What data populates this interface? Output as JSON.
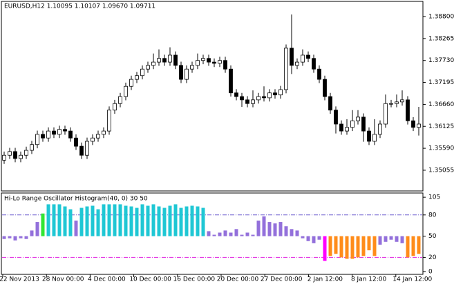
{
  "chart_data": [
    {
      "type": "candlestick",
      "title": "EURUSD,H12  1.10095 1.10107 1.09670 1.09711",
      "ylim": [
        1.3455,
        1.3917
      ],
      "yticks": [
        {
          "value": 1.388,
          "label": "1.38800"
        },
        {
          "value": 1.38265,
          "label": "1.38265"
        },
        {
          "value": 1.3773,
          "label": "1.37730"
        },
        {
          "value": 1.37195,
          "label": "1.37195"
        },
        {
          "value": 1.3666,
          "label": "1.36660"
        },
        {
          "value": 1.36125,
          "label": "1.36125"
        },
        {
          "value": 1.3559,
          "label": "1.35590"
        },
        {
          "value": 1.35055,
          "label": "1.35055"
        }
      ],
      "open": [
        1.353,
        1.3542,
        1.3551,
        1.3534,
        1.3542,
        1.3554,
        1.3568,
        1.3593,
        1.3584,
        1.3601,
        1.3593,
        1.3605,
        1.3601,
        1.3584,
        1.3564,
        1.3542,
        1.3576,
        1.3584,
        1.3593,
        1.3601,
        1.3652,
        1.3668,
        1.3685,
        1.371,
        1.3727,
        1.3736,
        1.3752,
        1.3761,
        1.3769,
        1.3778,
        1.3769,
        1.3786,
        1.3761,
        1.3727,
        1.3752,
        1.3761,
        1.3773,
        1.3778,
        1.3769,
        1.3766,
        1.3773,
        1.3752,
        1.3694,
        1.3685,
        1.3677,
        1.3668,
        1.3677,
        1.3685,
        1.3682,
        1.3694,
        1.3689,
        1.3702,
        1.3803,
        1.3761,
        1.3769,
        1.3786,
        1.3778,
        1.3752,
        1.3727,
        1.3685,
        1.3652,
        1.3618,
        1.3601,
        1.361,
        1.3626,
        1.3635,
        1.3601,
        1.3576,
        1.3593,
        1.3618,
        1.3668,
        1.3668,
        1.3672,
        1.3677,
        1.3626,
        1.361
      ],
      "high": [
        1.3551,
        1.356,
        1.356,
        1.3551,
        1.3563,
        1.3577,
        1.3602,
        1.3602,
        1.361,
        1.361,
        1.3614,
        1.3614,
        1.361,
        1.3593,
        1.3573,
        1.3585,
        1.3593,
        1.3602,
        1.361,
        1.3661,
        1.3677,
        1.3694,
        1.3719,
        1.3736,
        1.3745,
        1.3761,
        1.377,
        1.379,
        1.38,
        1.3787,
        1.3805,
        1.3795,
        1.377,
        1.3761,
        1.377,
        1.379,
        1.3787,
        1.3787,
        1.3778,
        1.3782,
        1.3782,
        1.3761,
        1.3703,
        1.3694,
        1.3686,
        1.37,
        1.3694,
        1.371,
        1.3703,
        1.3703,
        1.3711,
        1.3812,
        1.3885,
        1.3778,
        1.38,
        1.3795,
        1.3787,
        1.3761,
        1.3736,
        1.3694,
        1.3661,
        1.3627,
        1.363,
        1.3652,
        1.3652,
        1.3644,
        1.361,
        1.363,
        1.3627,
        1.369,
        1.3677,
        1.369,
        1.37,
        1.3686,
        1.3635,
        1.366
      ],
      "low": [
        1.3521,
        1.3533,
        1.3525,
        1.3525,
        1.3533,
        1.3545,
        1.3559,
        1.3575,
        1.3575,
        1.3584,
        1.3584,
        1.3592,
        1.3575,
        1.3555,
        1.3533,
        1.3533,
        1.3567,
        1.3575,
        1.3584,
        1.3592,
        1.3643,
        1.3659,
        1.3676,
        1.3701,
        1.3718,
        1.3727,
        1.3743,
        1.3752,
        1.376,
        1.376,
        1.376,
        1.3752,
        1.3718,
        1.3718,
        1.3743,
        1.3752,
        1.3764,
        1.376,
        1.3757,
        1.3757,
        1.3743,
        1.3685,
        1.3676,
        1.366,
        1.3659,
        1.3659,
        1.3668,
        1.3673,
        1.3673,
        1.368,
        1.368,
        1.3693,
        1.374,
        1.3752,
        1.376,
        1.3769,
        1.3743,
        1.3718,
        1.3676,
        1.3643,
        1.3595,
        1.3592,
        1.3592,
        1.3601,
        1.3617,
        1.3575,
        1.3567,
        1.3567,
        1.3584,
        1.3609,
        1.3659,
        1.3659,
        1.3663,
        1.3617,
        1.3601,
        1.359
      ],
      "close": [
        1.3542,
        1.3551,
        1.3534,
        1.3542,
        1.3554,
        1.3568,
        1.3593,
        1.3584,
        1.3601,
        1.3593,
        1.3605,
        1.3601,
        1.3584,
        1.3564,
        1.3542,
        1.3576,
        1.3584,
        1.3593,
        1.3601,
        1.3652,
        1.3668,
        1.3685,
        1.371,
        1.3727,
        1.3736,
        1.3752,
        1.3761,
        1.3769,
        1.3778,
        1.3769,
        1.3786,
        1.3761,
        1.3727,
        1.3752,
        1.3761,
        1.3773,
        1.3778,
        1.3769,
        1.3766,
        1.3773,
        1.3752,
        1.3694,
        1.3685,
        1.3677,
        1.3668,
        1.3677,
        1.3685,
        1.3682,
        1.3694,
        1.3689,
        1.3702,
        1.3803,
        1.3761,
        1.3769,
        1.3786,
        1.3778,
        1.3752,
        1.3727,
        1.3685,
        1.3652,
        1.3618,
        1.3601,
        1.361,
        1.3626,
        1.3635,
        1.3601,
        1.3576,
        1.3593,
        1.3618,
        1.3668,
        1.3668,
        1.3672,
        1.3677,
        1.3626,
        1.361,
        1.3618
      ],
      "xtick_labels": [
        "22 Nov 2013",
        "28 Nov 00:00",
        "4 Dec 00:00",
        "10 Dec 00:00",
        "16 Dec 00:00",
        "20 Dec 00:00",
        "27 Dec 00:00",
        "2 Jan 12:00",
        "8 Jan 12:00",
        "14 Jan 12:00"
      ]
    },
    {
      "type": "histogram",
      "title": "Hi-Lo Range Oscillator Histogram(40, 0) 30 50",
      "ylim": [
        -3,
        110
      ],
      "yticks": [
        105,
        80,
        50,
        20,
        0
      ],
      "baseline": 50,
      "levels": [
        {
          "value": 80,
          "color": "#6a5acd"
        },
        {
          "value": 20,
          "color": "#e020e0"
        }
      ],
      "values": [
        46,
        47,
        44,
        47,
        46,
        58,
        70,
        82,
        95,
        95,
        95,
        92,
        88,
        72,
        90,
        92,
        93,
        88,
        95,
        95,
        95,
        95,
        93,
        92,
        90,
        95,
        93,
        95,
        92,
        90,
        93,
        95,
        90,
        92,
        93,
        92,
        90,
        57,
        52,
        55,
        58,
        55,
        60,
        52,
        55,
        52,
        72,
        78,
        70,
        68,
        70,
        64,
        60,
        58,
        47,
        43,
        40,
        45,
        15,
        22,
        25,
        20,
        18,
        18,
        20,
        22,
        30,
        22,
        38,
        42,
        45,
        42,
        40,
        20,
        22,
        25
      ],
      "colors": [
        "#9370db",
        "#9370db",
        "#9370db",
        "#9370db",
        "#9370db",
        "#9370db",
        "#9370db",
        "#32e632",
        "#1fc7d4",
        "#1fc7d4",
        "#1fc7d4",
        "#1fc7d4",
        "#1fc7d4",
        "#9370db",
        "#1fc7d4",
        "#1fc7d4",
        "#1fc7d4",
        "#1fc7d4",
        "#1fc7d4",
        "#1fc7d4",
        "#1fc7d4",
        "#1fc7d4",
        "#1fc7d4",
        "#1fc7d4",
        "#1fc7d4",
        "#1fc7d4",
        "#1fc7d4",
        "#1fc7d4",
        "#1fc7d4",
        "#1fc7d4",
        "#1fc7d4",
        "#1fc7d4",
        "#1fc7d4",
        "#1fc7d4",
        "#1fc7d4",
        "#1fc7d4",
        "#1fc7d4",
        "#9370db",
        "#9370db",
        "#9370db",
        "#9370db",
        "#9370db",
        "#9370db",
        "#9370db",
        "#9370db",
        "#9370db",
        "#9370db",
        "#9370db",
        "#9370db",
        "#9370db",
        "#9370db",
        "#9370db",
        "#9370db",
        "#9370db",
        "#9370db",
        "#9370db",
        "#9370db",
        "#9370db",
        "#ff00ff",
        "#ff8c1a",
        "#ff8c1a",
        "#ff8c1a",
        "#ff8c1a",
        "#ff8c1a",
        "#ff8c1a",
        "#ff8c1a",
        "#ff8c1a",
        "#ff8c1a",
        "#9370db",
        "#9370db",
        "#9370db",
        "#9370db",
        "#9370db",
        "#ff8c1a",
        "#ff8c1a",
        "#ff8c1a"
      ]
    }
  ]
}
